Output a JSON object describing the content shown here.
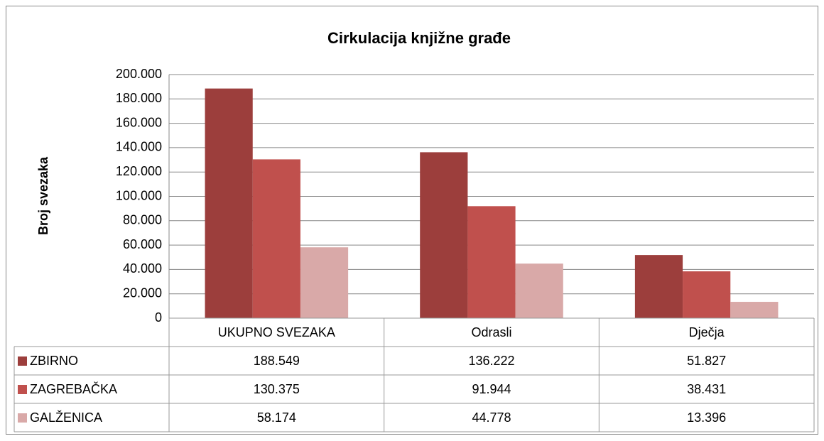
{
  "chart_data": {
    "type": "bar",
    "title": "Cirkulacija knjižne građe",
    "y_label": "Broj svezaka",
    "categories": [
      "UKUPNO SVEZAKA",
      "Odrasli",
      "Dječja"
    ],
    "series": [
      {
        "name": "ZBIRNO",
        "color": "#9c3e3c",
        "values": [
          188549,
          136222,
          51827
        ],
        "value_labels": [
          "188.549",
          "136.222",
          "51.827"
        ]
      },
      {
        "name": "ZAGREBAČKA",
        "color": "#c0504d",
        "values": [
          130375,
          91944,
          38431
        ],
        "value_labels": [
          "130.375",
          "91.944",
          "38.431"
        ]
      },
      {
        "name": "GALŽENICA",
        "color": "#d9a9a8",
        "values": [
          58174,
          44778,
          13396
        ],
        "value_labels": [
          "58.174",
          "44.778",
          "13.396"
        ]
      }
    ],
    "ylim": [
      0,
      200000
    ],
    "yticks": [
      0,
      {
        "value": 20000,
        "label": "20.000"
      },
      {
        "value": 40000,
        "label": "40.000"
      },
      {
        "value": 60000,
        "label": "60.000"
      },
      {
        "value": 80000,
        "label": "80.000"
      },
      {
        "value": 100000,
        "label": "100.000"
      },
      {
        "value": 120000,
        "label": "120.000"
      },
      {
        "value": 140000,
        "label": "140.000"
      },
      {
        "value": 160000,
        "label": "160.000"
      },
      {
        "value": 180000,
        "label": "180.000"
      },
      {
        "value": 200000,
        "label": "200.000"
      }
    ],
    "grid": true
  }
}
